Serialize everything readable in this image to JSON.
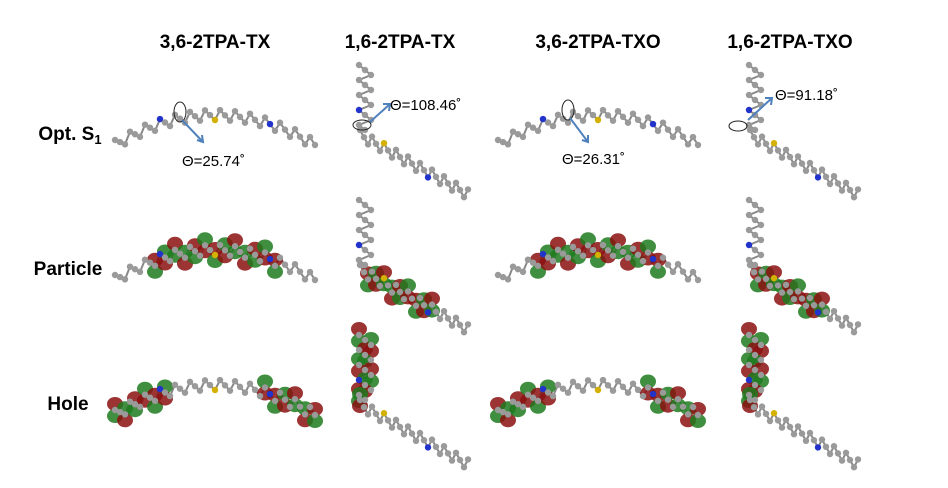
{
  "columns": [
    "3,6-2TPA-TX",
    "1,6-2TPA-TX",
    "3,6-2TPA-TXO",
    "1,6-2TPA-TXO"
  ],
  "rows": [
    {
      "label": "Opt. S",
      "subscript": "1"
    },
    {
      "label": "Particle"
    },
    {
      "label": "Hole"
    }
  ],
  "angles": [
    "Θ=25.74˚",
    "Θ=108.46˚",
    "Θ=26.31˚",
    "Θ=91.18˚"
  ]
}
